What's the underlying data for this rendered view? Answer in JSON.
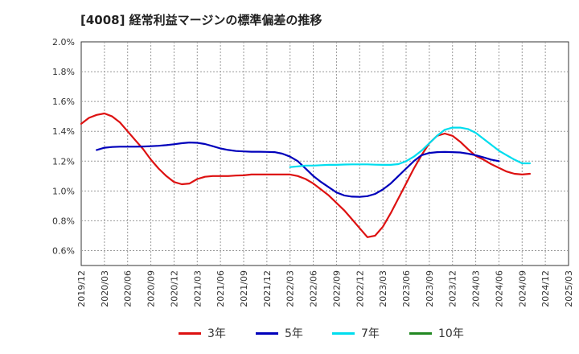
{
  "chart_data": {
    "type": "line",
    "title": "[4008]  経常利益マージンの標準偏差の推移",
    "xlabel": "",
    "ylabel": "",
    "ylim": [
      0.5,
      2.0
    ],
    "yticks": [
      "2.0%",
      "1.8%",
      "1.6%",
      "1.4%",
      "1.2%",
      "1.0%",
      "0.8%",
      "0.6%"
    ],
    "ytick_values": [
      2.0,
      1.8,
      1.6,
      1.4,
      1.2,
      1.0,
      0.8,
      0.6
    ],
    "xticks": [
      "2019/12",
      "2020/03",
      "2020/06",
      "2020/09",
      "2020/12",
      "2021/03",
      "2021/06",
      "2021/09",
      "2021/12",
      "2022/03",
      "2022/06",
      "2022/09",
      "2022/12",
      "2023/03",
      "2023/06",
      "2023/09",
      "2023/12",
      "2024/03",
      "2024/06",
      "2024/09",
      "2024/12",
      "2025/03"
    ],
    "grid": true,
    "legend_position": "bottom",
    "series": [
      {
        "name": "3年",
        "color": "#dd1111",
        "start_index": 0,
        "values": [
          1.45,
          1.49,
          1.51,
          1.52,
          1.5,
          1.46,
          1.4,
          1.34,
          1.28,
          1.21,
          1.15,
          1.1,
          1.06,
          1.045,
          1.05,
          1.08,
          1.095,
          1.1,
          1.1,
          1.1,
          1.103,
          1.105,
          1.11,
          1.11,
          1.11,
          1.11,
          1.11,
          1.11,
          1.1,
          1.08,
          1.05,
          1.01,
          0.97,
          0.92,
          0.87,
          0.81,
          0.75,
          0.69,
          0.7,
          0.76,
          0.85,
          0.95,
          1.05,
          1.15,
          1.24,
          1.32,
          1.37,
          1.385,
          1.37,
          1.33,
          1.28,
          1.235,
          1.21,
          1.18,
          1.155,
          1.13,
          1.115,
          1.11,
          1.115
        ]
      },
      {
        "name": "5年",
        "color": "#0000bb",
        "start_index": 2,
        "values": [
          1.275,
          1.29,
          1.295,
          1.297,
          1.297,
          1.297,
          1.298,
          1.3,
          1.303,
          1.307,
          1.313,
          1.32,
          1.325,
          1.323,
          1.315,
          1.3,
          1.285,
          1.275,
          1.268,
          1.265,
          1.263,
          1.263,
          1.262,
          1.26,
          1.25,
          1.23,
          1.2,
          1.15,
          1.1,
          1.06,
          1.025,
          0.99,
          0.97,
          0.962,
          0.96,
          0.965,
          0.98,
          1.01,
          1.05,
          1.1,
          1.15,
          1.2,
          1.24,
          1.255,
          1.26,
          1.262,
          1.26,
          1.258,
          1.25,
          1.24,
          1.225,
          1.21,
          1.2
        ]
      },
      {
        "name": "7年",
        "color": "#00ddee",
        "start_index": 27,
        "values": [
          1.16,
          1.165,
          1.17,
          1.17,
          1.173,
          1.175,
          1.175,
          1.177,
          1.178,
          1.178,
          1.178,
          1.176,
          1.175,
          1.175,
          1.18,
          1.2,
          1.23,
          1.27,
          1.32,
          1.37,
          1.41,
          1.425,
          1.425,
          1.415,
          1.39,
          1.35,
          1.31,
          1.27,
          1.24,
          1.21,
          1.185,
          1.185
        ]
      },
      {
        "name": "10年",
        "color": "#228822",
        "start_index": 0,
        "values": []
      }
    ]
  }
}
